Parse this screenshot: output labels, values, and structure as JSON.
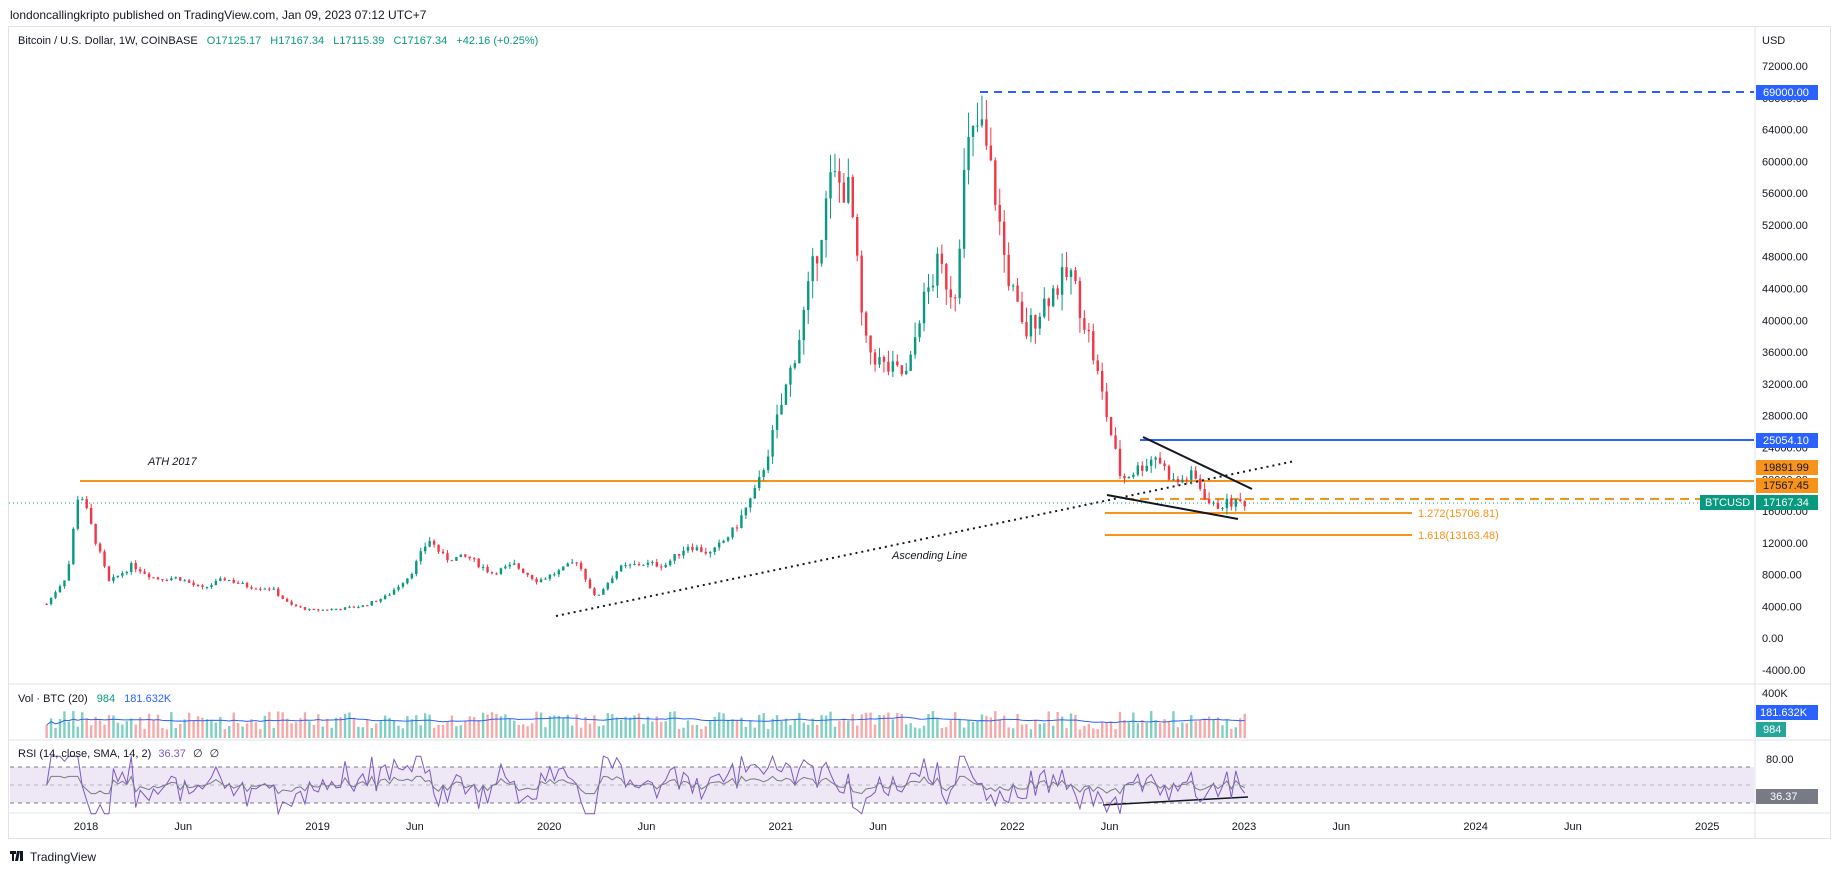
{
  "header": {
    "published": "londoncallingkripto published on TradingView.com, Jan 09, 2023 07:12 UTC+7"
  },
  "legend": {
    "symbol": "Bitcoin / U.S. Dollar, 1W, COINBASE",
    "open": "O17125.17",
    "high": "H17167.34",
    "low": "L17115.39",
    "close": "C17167.34",
    "change": "+42.16 (+0.25%)"
  },
  "volume_legend": {
    "label": "Vol · BTC (20)",
    "value": "984",
    "ma": "181.632K"
  },
  "rsi_legend": {
    "label": "RSI (14, close, SMA, 14, 2)",
    "value": "36.37",
    "extra1": "∅",
    "extra2": "∅"
  },
  "footer": {
    "logo_icon": "tradingview-logo-icon",
    "brand": "TradingView"
  },
  "colors": {
    "up": "#089981",
    "down": "#f23645",
    "orange": "#f7931a",
    "blue": "#2962ff",
    "rsi_band": "#ede7f6"
  },
  "chart_data": {
    "type": "line",
    "title": "Bitcoin / U.S. Dollar, 1W, COINBASE",
    "currency": "USD",
    "x_ticks": [
      "2018",
      "Jun",
      "2019",
      "Jun",
      "2020",
      "Jun",
      "2021",
      "Jun",
      "2022",
      "Jun",
      "2023",
      "Jun",
      "2024",
      "Jun",
      "2025"
    ],
    "y_ticks": [
      "72000.00",
      "68000.00",
      "64000.00",
      "60000.00",
      "56000.00",
      "52000.00",
      "48000.00",
      "44000.00",
      "40000.00",
      "36000.00",
      "32000.00",
      "28000.00",
      "24000.00",
      "20000.00",
      "16000.00",
      "12000.00",
      "8000.00",
      "4000.00",
      "0.00",
      "-4000.00"
    ],
    "ylim": [
      -4000,
      72000
    ],
    "series": [
      {
        "values": [
          [
            2017.83,
            4300
          ],
          [
            2017.92,
            8000
          ],
          [
            2017.97,
            19000
          ],
          [
            2018.05,
            11500
          ],
          [
            2018.1,
            7000
          ],
          [
            2018.2,
            9200
          ],
          [
            2018.3,
            7500
          ],
          [
            2018.4,
            7600
          ],
          [
            2018.5,
            6200
          ],
          [
            2018.6,
            7500
          ],
          [
            2018.7,
            6500
          ],
          [
            2018.8,
            6300
          ],
          [
            2018.88,
            4200
          ],
          [
            2018.97,
            3500
          ],
          [
            2019.1,
            3700
          ],
          [
            2019.2,
            4100
          ],
          [
            2019.3,
            5300
          ],
          [
            2019.4,
            8000
          ],
          [
            2019.48,
            12500
          ],
          [
            2019.55,
            10000
          ],
          [
            2019.65,
            10200
          ],
          [
            2019.75,
            8200
          ],
          [
            2019.85,
            9200
          ],
          [
            2019.95,
            7200
          ],
          [
            2020.05,
            8500
          ],
          [
            2020.12,
            9800
          ],
          [
            2020.2,
            5000
          ],
          [
            2020.3,
            8800
          ],
          [
            2020.4,
            9400
          ],
          [
            2020.5,
            9200
          ],
          [
            2020.6,
            11700
          ],
          [
            2020.7,
            10600
          ],
          [
            2020.8,
            13700
          ],
          [
            2020.9,
            19000
          ],
          [
            2021.0,
            29000
          ],
          [
            2021.08,
            38000
          ],
          [
            2021.15,
            48000
          ],
          [
            2021.22,
            58000
          ],
          [
            2021.3,
            56000
          ],
          [
            2021.36,
            37000
          ],
          [
            2021.45,
            34000
          ],
          [
            2021.55,
            33000
          ],
          [
            2021.6,
            41000
          ],
          [
            2021.68,
            47000
          ],
          [
            2021.75,
            43000
          ],
          [
            2021.8,
            61000
          ],
          [
            2021.86,
            65000
          ],
          [
            2021.92,
            57000
          ],
          [
            2021.97,
            47000
          ],
          [
            2022.05,
            38000
          ],
          [
            2022.15,
            43000
          ],
          [
            2022.25,
            46000
          ],
          [
            2022.33,
            38000
          ],
          [
            2022.4,
            29000
          ],
          [
            2022.47,
            20000
          ],
          [
            2022.55,
            21500
          ],
          [
            2022.62,
            23000
          ],
          [
            2022.7,
            19500
          ],
          [
            2022.78,
            20500
          ],
          [
            2022.86,
            16500
          ],
          [
            2022.93,
            17000
          ],
          [
            2023.02,
            17167
          ]
        ]
      }
    ],
    "annotations": {
      "ath_2017": "ATH 2017",
      "ascending_line": "Ascending Line",
      "fib_1272": "1.272(15706.81)",
      "fib_1618": "1.618(13163.48)"
    },
    "price_tags": {
      "ath_level": "69000.00",
      "resistance": "25054.10",
      "level_high": "19891.99",
      "level_low": "17567.45",
      "symbol": "BTCUSD",
      "last_price": "17167.34"
    },
    "volume_axis": {
      "top": "400K",
      "ma_tag": "181.632K",
      "last_tag": "984"
    },
    "rsi_axis": {
      "upper": "80.00",
      "last_tag": "36.37"
    }
  }
}
